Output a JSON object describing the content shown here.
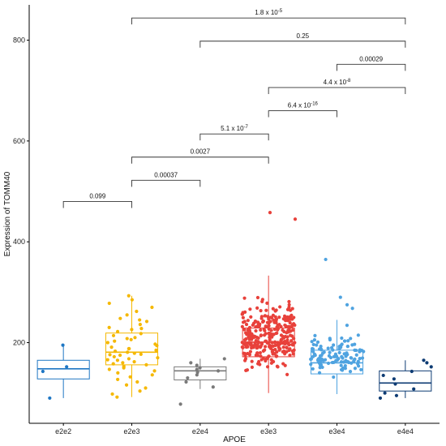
{
  "chart_data": {
    "type": "boxplot",
    "xlabel": "APOE",
    "ylabel": "Expression of TOMM40",
    "categories": [
      "e2e2",
      "e2e3",
      "e2e4",
      "e3e3",
      "e3e4",
      "e4e4"
    ],
    "colors": [
      "#1f77c4",
      "#f5b800",
      "#7a7a7a",
      "#e8413b",
      "#4fa3e0",
      "#0d3b73"
    ],
    "ylim": [
      40,
      870
    ],
    "yticks": [
      200,
      400,
      600,
      800
    ],
    "grid": false,
    "boxes": [
      {
        "category": "e2e2",
        "whisker_low": 90,
        "q1": 128,
        "median": 148,
        "q3": 165,
        "whisker_high": 196
      },
      {
        "category": "e2e3",
        "whisker_low": 92,
        "q1": 156,
        "median": 181,
        "q3": 219,
        "whisker_high": 293
      },
      {
        "category": "e2e4",
        "whisker_low": 108,
        "q1": 126,
        "median": 144,
        "q3": 152,
        "whisker_high": 168
      },
      {
        "category": "e3e3",
        "whisker_low": 100,
        "q1": 172,
        "median": 201,
        "q3": 229,
        "whisker_high": 333
      },
      {
        "category": "e3e4",
        "whisker_low": 98,
        "q1": 138,
        "median": 160,
        "q3": 185,
        "whisker_high": 245
      },
      {
        "category": "e4e4",
        "whisker_low": 90,
        "q1": 104,
        "median": 120,
        "q3": 144,
        "whisker_high": 165
      }
    ],
    "points": {
      "e2e2": [
        195,
        152,
        143,
        90
      ],
      "e2e3": [
        293,
        285,
        278,
        270,
        262,
        255,
        248,
        242,
        236,
        230,
        226,
        222,
        218,
        214,
        210,
        206,
        203,
        200,
        197,
        194,
        191,
        188,
        185,
        183,
        181,
        179,
        177,
        175,
        172,
        170,
        168,
        165,
        162,
        160,
        158,
        156,
        153,
        150,
        147,
        144,
        140,
        136,
        132,
        127,
        122,
        116,
        110,
        104,
        98,
        92,
        188,
        176,
        166,
        208,
        228,
        245
      ],
      "e2e4": [
        168,
        160,
        155,
        150,
        147,
        144,
        141,
        136,
        130,
        122,
        112,
        78
      ],
      "e3e3_outliers": [
        458,
        445
      ],
      "e3e4": [
        365,
        290,
        275,
        268
      ],
      "e4e4": [
        165,
        160,
        152,
        143,
        135,
        128,
        118,
        108,
        100,
        95,
        90
      ]
    },
    "e3e3_n": 300,
    "e3e4_n": 120,
    "comparisons": [
      {
        "from": "e2e2",
        "to": "e2e3",
        "label": "0.099",
        "y": 480
      },
      {
        "from": "e2e3",
        "to": "e2e4",
        "label": "0.00037",
        "y": 522
      },
      {
        "from": "e2e3",
        "to": "e3e3",
        "label": "0.0027",
        "y": 568
      },
      {
        "from": "e2e4",
        "to": "e3e3",
        "label": "5.1 x 10",
        "exp": "-7",
        "y": 614
      },
      {
        "from": "e3e3",
        "to": "e3e4",
        "label": "6.4 x 10",
        "exp": "-16",
        "y": 660
      },
      {
        "from": "e3e3",
        "to": "e4e4",
        "label": "4.4 x 10",
        "exp": "-8",
        "y": 706
      },
      {
        "from": "e3e4",
        "to": "e4e4",
        "label": "0.00029",
        "y": 752
      },
      {
        "from": "e2e4",
        "to": "e4e4",
        "label": "0.25",
        "y": 798
      },
      {
        "from": "e2e3",
        "to": "e4e4",
        "label": "1.8 x 10",
        "exp": "-5",
        "y": 844
      }
    ]
  }
}
